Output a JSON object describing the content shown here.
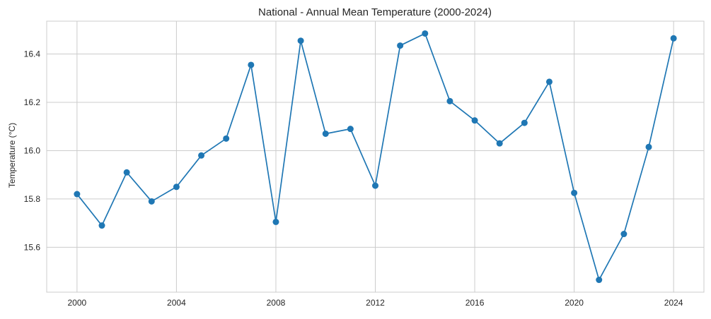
{
  "chart_data": {
    "type": "line",
    "title": "National - Annual Mean Temperature (2000-2024)",
    "xlabel": "",
    "ylabel": "Temperature (°C)",
    "x": [
      2000,
      2001,
      2002,
      2003,
      2004,
      2005,
      2006,
      2007,
      2008,
      2009,
      2010,
      2011,
      2012,
      2013,
      2014,
      2015,
      2016,
      2017,
      2018,
      2019,
      2020,
      2021,
      2022,
      2023,
      2024
    ],
    "series": [
      {
        "values": [
          15.82,
          15.69,
          15.91,
          15.79,
          15.85,
          15.98,
          16.05,
          16.355,
          15.705,
          16.455,
          16.07,
          16.09,
          15.855,
          16.435,
          16.485,
          16.205,
          16.125,
          16.03,
          16.115,
          16.285,
          15.825,
          15.465,
          15.655,
          16.015,
          16.465
        ],
        "color": "#1f77b4",
        "marker": "circle"
      }
    ],
    "xlim": [
      1998.78,
      2025.22
    ],
    "ylim": [
      15.414,
      16.536
    ],
    "xticks": [
      "2000",
      "2004",
      "2008",
      "2012",
      "2016",
      "2020",
      "2024"
    ],
    "yticks": [
      "15.6",
      "15.8",
      "16.0",
      "16.2",
      "16.4"
    ],
    "grid": true,
    "legend": "none"
  },
  "colors": {
    "line": "#1f77b4",
    "grid": "#cccccc",
    "axes_edge": "#cccccc",
    "background": "#ffffff"
  }
}
